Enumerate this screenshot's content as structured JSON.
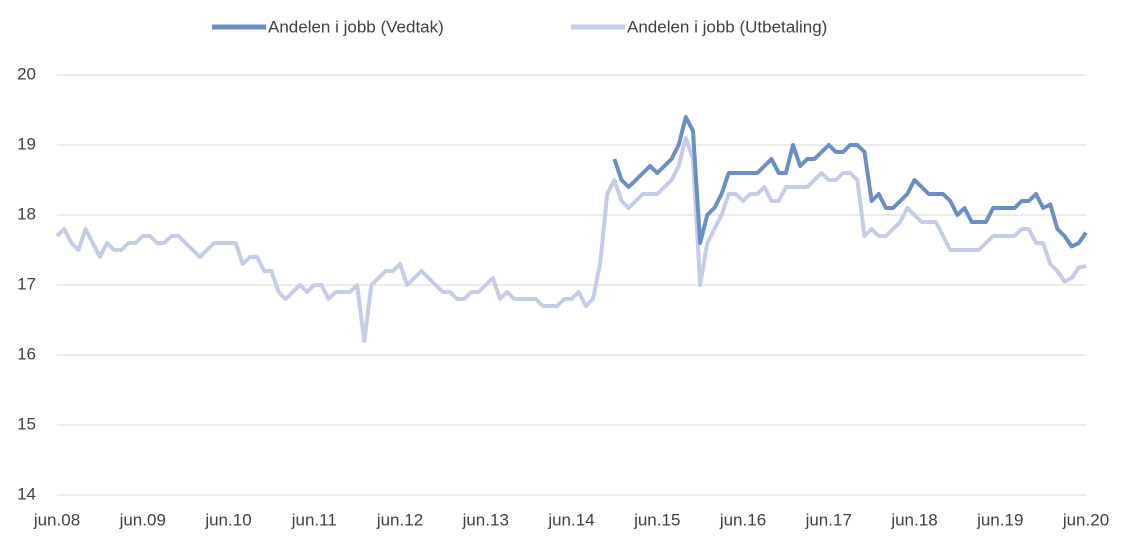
{
  "chart_data": {
    "type": "line",
    "categories": [
      "jun.08",
      null,
      null,
      null,
      null,
      null,
      null,
      null,
      null,
      null,
      null,
      null,
      "jun.09",
      null,
      null,
      null,
      null,
      null,
      null,
      null,
      null,
      null,
      null,
      null,
      "jun.10",
      null,
      null,
      null,
      null,
      null,
      null,
      null,
      null,
      null,
      null,
      null,
      "jun.11",
      null,
      null,
      null,
      null,
      null,
      null,
      null,
      null,
      null,
      null,
      null,
      "jun.12",
      null,
      null,
      null,
      null,
      null,
      null,
      null,
      null,
      null,
      null,
      null,
      "jun.13",
      null,
      null,
      null,
      null,
      null,
      null,
      null,
      null,
      null,
      null,
      null,
      "jun.14",
      null,
      null,
      null,
      null,
      null,
      null,
      null,
      null,
      null,
      null,
      null,
      "jun.15",
      null,
      null,
      null,
      null,
      null,
      null,
      null,
      null,
      null,
      null,
      null,
      "jun.16",
      null,
      null,
      null,
      null,
      null,
      null,
      null,
      null,
      null,
      null,
      null,
      "jun.17",
      null,
      null,
      null,
      null,
      null,
      null,
      null,
      null,
      null,
      null,
      null,
      "jun.18",
      null,
      null,
      null,
      null,
      null,
      null,
      null,
      null,
      null,
      null,
      null,
      "jun.19",
      null,
      null,
      null,
      null,
      null,
      null,
      null,
      null,
      null,
      null,
      null,
      "jun.20"
    ],
    "series": [
      {
        "name": "Andelen i jobb (Vedtak)",
        "color": "#6a8ec8",
        "values": [
          null,
          null,
          null,
          null,
          null,
          null,
          null,
          null,
          null,
          null,
          null,
          null,
          null,
          null,
          null,
          null,
          null,
          null,
          null,
          null,
          null,
          null,
          null,
          null,
          null,
          null,
          null,
          null,
          null,
          null,
          null,
          null,
          null,
          null,
          null,
          null,
          null,
          null,
          null,
          null,
          null,
          null,
          null,
          null,
          null,
          null,
          null,
          null,
          null,
          null,
          null,
          null,
          null,
          null,
          null,
          null,
          null,
          null,
          null,
          null,
          null,
          null,
          null,
          null,
          null,
          null,
          null,
          null,
          null,
          null,
          null,
          null,
          null,
          null,
          null,
          null,
          null,
          null,
          18.8,
          18.5,
          18.4,
          18.5,
          18.6,
          18.7,
          18.6,
          18.7,
          18.8,
          19.0,
          19.4,
          19.2,
          17.6,
          18.0,
          18.1,
          18.3,
          18.6,
          18.6,
          18.6,
          18.6,
          18.6,
          18.7,
          18.8,
          18.6,
          18.6,
          19.0,
          18.7,
          18.8,
          18.8,
          18.9,
          19.0,
          18.9,
          18.9,
          19.0,
          19.0,
          18.9,
          18.2,
          18.3,
          18.1,
          18.1,
          18.2,
          18.3,
          18.5,
          18.4,
          18.3,
          18.3,
          18.3,
          18.2,
          18.0,
          18.1,
          17.9,
          17.9,
          17.9,
          18.1,
          18.1,
          18.1,
          18.1,
          18.2,
          18.2,
          18.3,
          18.1,
          18.15,
          17.8,
          17.7,
          17.55,
          17.6,
          17.75
        ]
      },
      {
        "name": "Andelen i jobb (Utbetaling)",
        "color": "#c4cce7",
        "values": [
          17.7,
          17.8,
          17.6,
          17.5,
          17.8,
          17.6,
          17.4,
          17.6,
          17.5,
          17.5,
          17.6,
          17.6,
          17.7,
          17.7,
          17.6,
          17.6,
          17.7,
          17.7,
          17.6,
          17.5,
          17.4,
          17.5,
          17.6,
          17.6,
          17.6,
          17.6,
          17.3,
          17.4,
          17.4,
          17.2,
          17.2,
          16.9,
          16.8,
          16.9,
          17.0,
          16.9,
          17.0,
          17.0,
          16.8,
          16.9,
          16.9,
          16.9,
          17.0,
          16.2,
          17.0,
          17.1,
          17.2,
          17.2,
          17.3,
          17.0,
          17.1,
          17.2,
          17.1,
          17.0,
          16.9,
          16.9,
          16.8,
          16.8,
          16.9,
          16.9,
          17.0,
          17.1,
          16.8,
          16.9,
          16.8,
          16.8,
          16.8,
          16.8,
          16.7,
          16.7,
          16.7,
          16.8,
          16.8,
          16.9,
          16.7,
          16.8,
          17.3,
          18.3,
          18.5,
          18.2,
          18.1,
          18.2,
          18.3,
          18.3,
          18.3,
          18.4,
          18.5,
          18.7,
          19.1,
          18.8,
          17.0,
          17.6,
          17.8,
          18.0,
          18.3,
          18.3,
          18.2,
          18.3,
          18.3,
          18.4,
          18.2,
          18.2,
          18.4,
          18.4,
          18.4,
          18.4,
          18.5,
          18.6,
          18.5,
          18.5,
          18.6,
          18.6,
          18.5,
          17.7,
          17.8,
          17.7,
          17.7,
          17.8,
          17.9,
          18.1,
          18.0,
          17.9,
          17.9,
          17.9,
          17.7,
          17.5,
          17.5,
          17.5,
          17.5,
          17.5,
          17.6,
          17.7,
          17.7,
          17.7,
          17.7,
          17.8,
          17.8,
          17.6,
          17.6,
          17.3,
          17.2,
          17.05,
          17.1,
          17.25,
          17.27
        ]
      }
    ],
    "ylim": [
      14,
      20
    ],
    "yticks": [
      14,
      15,
      16,
      17,
      18,
      19,
      20
    ],
    "grid": true,
    "legend": "top"
  }
}
